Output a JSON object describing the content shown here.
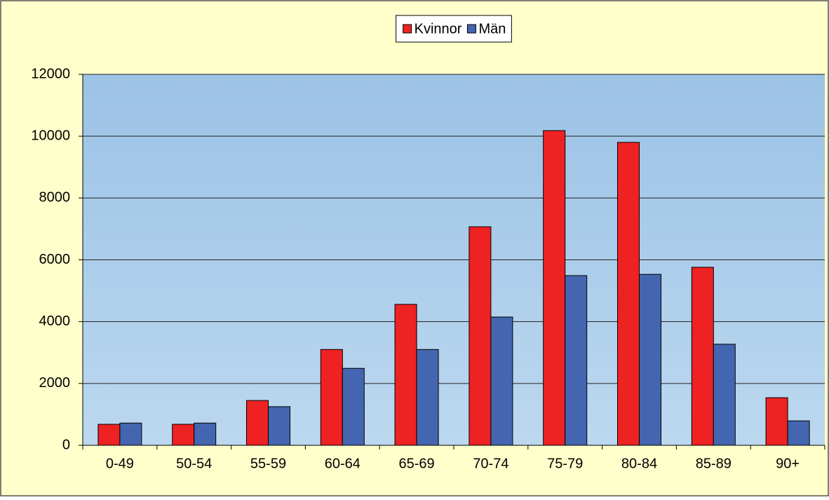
{
  "chart_data": {
    "type": "bar",
    "categories": [
      "0-49",
      "50-54",
      "55-59",
      "60-64",
      "65-69",
      "70-74",
      "75-79",
      "80-84",
      "85-89",
      "90+"
    ],
    "series": [
      {
        "name": "Kvinnor",
        "color": "#ee2222",
        "values": [
          680,
          680,
          1450,
          3100,
          4560,
          7070,
          10180,
          9800,
          5760,
          1540
        ]
      },
      {
        "name": "Män",
        "color": "#4466b0",
        "values": [
          720,
          720,
          1250,
          2490,
          3100,
          4150,
          5490,
          5530,
          3270,
          790
        ]
      }
    ],
    "ylim": [
      0,
      12000
    ],
    "yticks": [
      0,
      2000,
      4000,
      6000,
      8000,
      10000,
      12000
    ],
    "grid": true,
    "legend": "top"
  }
}
